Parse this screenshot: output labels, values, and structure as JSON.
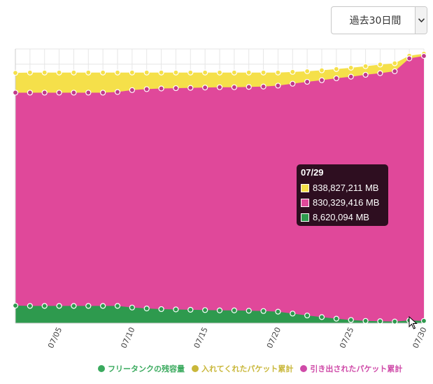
{
  "range_select": {
    "value": "過去30日間"
  },
  "colors": {
    "total": "#f5e04a",
    "out": "#e0489a",
    "free": "#2e9a4e",
    "grid": "#e6e6e6"
  },
  "legend": [
    {
      "label": "フリータンクの残容量",
      "color": "#3aaa5e"
    },
    {
      "label": "入れてくれたパケット累計",
      "color": "#c9b73a"
    },
    {
      "label": "引き出されたパケット累計",
      "color": "#cf4aa8"
    }
  ],
  "tooltip": {
    "title": "07/29",
    "rows": [
      {
        "color": "#f5e04a",
        "value": "838,827,211 MB"
      },
      {
        "color": "#e0489a",
        "value": "830,329,416 MB"
      },
      {
        "color": "#2e9a4e",
        "value": "8,620,094 MB"
      }
    ]
  },
  "chart_data": {
    "type": "area",
    "x_tick_labels": [
      "07/05",
      "07/10",
      "07/15",
      "07/20",
      "07/25",
      "07/30"
    ],
    "x_tick_indices": [
      3,
      8,
      13,
      18,
      23,
      28
    ],
    "x": [
      "07/02",
      "07/03",
      "07/04",
      "07/05",
      "07/06",
      "07/07",
      "07/08",
      "07/09",
      "07/10",
      "07/11",
      "07/12",
      "07/13",
      "07/14",
      "07/15",
      "07/16",
      "07/17",
      "07/18",
      "07/19",
      "07/20",
      "07/21",
      "07/22",
      "07/23",
      "07/24",
      "07/25",
      "07/26",
      "07/27",
      "07/28",
      "07/29",
      "07/30"
    ],
    "ylim": [
      0,
      860000000
    ],
    "series": [
      {
        "name": "入れてくれたパケット累計",
        "values": [
          785000000,
          786000000,
          786000000,
          786000000,
          786000000,
          786000000,
          786000000,
          786000000,
          786000000,
          786000000,
          786000000,
          786000000,
          786000000,
          786000000,
          786000000,
          786000000,
          786000000,
          786000000,
          786000000,
          788000000,
          790000000,
          793000000,
          797000000,
          801000000,
          806000000,
          811000000,
          815000000,
          838827211,
          845000000
        ]
      },
      {
        "name": "引き出されたパケット累計",
        "values": [
          723000000,
          723000000,
          723000000,
          723000000,
          723000000,
          723000000,
          723000000,
          725000000,
          731000000,
          734000000,
          736000000,
          737000000,
          738000000,
          739000000,
          740000000,
          740000000,
          741000000,
          742000000,
          745000000,
          751000000,
          757000000,
          762000000,
          768000000,
          773000000,
          779000000,
          784000000,
          790000000,
          830329416,
          838000000
        ]
      },
      {
        "name": "フリータンクの残容量",
        "values": [
          55000000,
          54000000,
          54000000,
          54000000,
          54000000,
          54000000,
          54000000,
          54000000,
          49000000,
          46000000,
          44000000,
          43000000,
          42000000,
          41000000,
          40000000,
          40000000,
          39000000,
          38000000,
          36000000,
          30000000,
          24000000,
          19000000,
          14000000,
          10000000,
          7000000,
          6000000,
          5000000,
          8620094,
          7000000
        ]
      }
    ]
  }
}
